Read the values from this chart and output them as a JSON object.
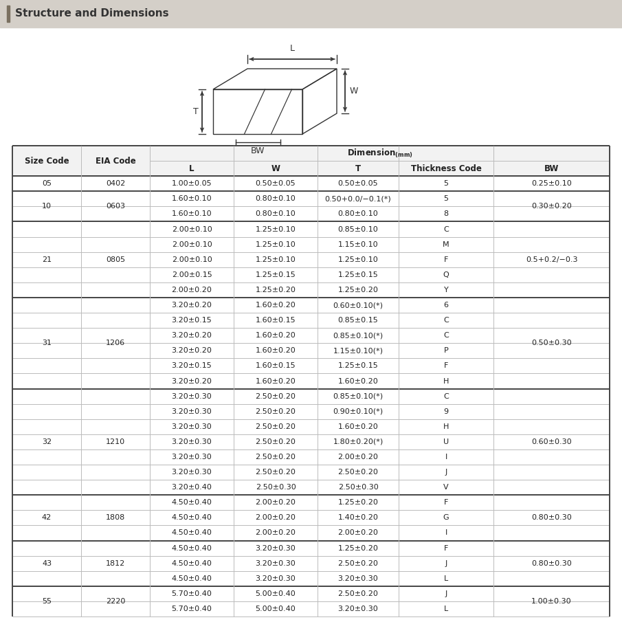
{
  "title": "Structure and Dimensions",
  "title_bar_color": "#d4cfc8",
  "title_bar_accent": "#7a7060",
  "header1": "Size Code",
  "header2": "EIA Code",
  "dim_header": "Dimension(mm)",
  "col_headers": [
    "L",
    "W",
    "T",
    "Thickness Code",
    "BW"
  ],
  "rows": [
    {
      "size": "05",
      "eia": "0402",
      "L": "1.00±0.05",
      "W": "0.50±0.05",
      "T": "0.50±0.05",
      "TC": "5",
      "BW": "0.25±0.10",
      "size_span": 1,
      "eia_span": 1,
      "bw_span": 1
    },
    {
      "size": "10",
      "eia": "0603",
      "L": "1.60±0.10",
      "W": "0.80±0.10",
      "T": "0.50+0.0/−0.1(*)",
      "TC": "5",
      "BW": "0.30±0.20",
      "size_span": 2,
      "eia_span": 2,
      "bw_span": 2
    },
    {
      "size": "",
      "eia": "",
      "L": "1.60±0.10",
      "W": "0.80±0.10",
      "T": "0.80±0.10",
      "TC": "8",
      "BW": ""
    },
    {
      "size": "21",
      "eia": "0805",
      "L": "2.00±0.10",
      "W": "1.25±0.10",
      "T": "0.85±0.10",
      "TC": "C",
      "BW": "0.5+0.2/−0.3",
      "size_span": 5,
      "eia_span": 5,
      "bw_span": 5
    },
    {
      "size": "",
      "eia": "",
      "L": "2.00±0.10",
      "W": "1.25±0.10",
      "T": "1.15±0.10",
      "TC": "M",
      "BW": ""
    },
    {
      "size": "",
      "eia": "",
      "L": "2.00±0.10",
      "W": "1.25±0.10",
      "T": "1.25±0.10",
      "TC": "F",
      "BW": ""
    },
    {
      "size": "",
      "eia": "",
      "L": "2.00±0.15",
      "W": "1.25±0.15",
      "T": "1.25±0.15",
      "TC": "Q",
      "BW": ""
    },
    {
      "size": "",
      "eia": "",
      "L": "2.00±0.20",
      "W": "1.25±0.20",
      "T": "1.25±0.20",
      "TC": "Y",
      "BW": ""
    },
    {
      "size": "31",
      "eia": "1206",
      "L": "3.20±0.20",
      "W": "1.60±0.20",
      "T": "0.60±0.10(*)",
      "TC": "6",
      "BW": "0.50±0.30",
      "size_span": 6,
      "eia_span": 6,
      "bw_span": 6
    },
    {
      "size": "",
      "eia": "",
      "L": "3.20±0.15",
      "W": "1.60±0.15",
      "T": "0.85±0.15",
      "TC": "C",
      "BW": ""
    },
    {
      "size": "",
      "eia": "",
      "L": "3.20±0.20",
      "W": "1.60±0.20",
      "T": "0.85±0.10(*)",
      "TC": "C",
      "BW": ""
    },
    {
      "size": "",
      "eia": "",
      "L": "3.20±0.20",
      "W": "1.60±0.20",
      "T": "1.15±0.10(*)",
      "TC": "P",
      "BW": ""
    },
    {
      "size": "",
      "eia": "",
      "L": "3.20±0.15",
      "W": "1.60±0.15",
      "T": "1.25±0.15",
      "TC": "F",
      "BW": ""
    },
    {
      "size": "",
      "eia": "",
      "L": "3.20±0.20",
      "W": "1.60±0.20",
      "T": "1.60±0.20",
      "TC": "H",
      "BW": ""
    },
    {
      "size": "32",
      "eia": "1210",
      "L": "3.20±0.30",
      "W": "2.50±0.20",
      "T": "0.85±0.10(*)",
      "TC": "C",
      "BW": "0.60±0.30",
      "size_span": 7,
      "eia_span": 7,
      "bw_span": 7
    },
    {
      "size": "",
      "eia": "",
      "L": "3.20±0.30",
      "W": "2.50±0.20",
      "T": "0.90±0.10(*)",
      "TC": "9",
      "BW": ""
    },
    {
      "size": "",
      "eia": "",
      "L": "3.20±0.30",
      "W": "2.50±0.20",
      "T": "1.60±0.20",
      "TC": "H",
      "BW": ""
    },
    {
      "size": "",
      "eia": "",
      "L": "3.20±0.30",
      "W": "2.50±0.20",
      "T": "1.80±0.20(*)",
      "TC": "U",
      "BW": ""
    },
    {
      "size": "",
      "eia": "",
      "L": "3.20±0.30",
      "W": "2.50±0.20",
      "T": "2.00±0.20",
      "TC": "I",
      "BW": ""
    },
    {
      "size": "",
      "eia": "",
      "L": "3.20±0.30",
      "W": "2.50±0.20",
      "T": "2.50±0.20",
      "TC": "J",
      "BW": ""
    },
    {
      "size": "",
      "eia": "",
      "L": "3.20±0.40",
      "W": "2.50±0.30",
      "T": "2.50±0.30",
      "TC": "V",
      "BW": ""
    },
    {
      "size": "42",
      "eia": "1808",
      "L": "4.50±0.40",
      "W": "2.00±0.20",
      "T": "1.25±0.20",
      "TC": "F",
      "BW": "0.80±0.30",
      "size_span": 3,
      "eia_span": 3,
      "bw_span": 3
    },
    {
      "size": "",
      "eia": "",
      "L": "4.50±0.40",
      "W": "2.00±0.20",
      "T": "1.40±0.20",
      "TC": "G",
      "BW": ""
    },
    {
      "size": "",
      "eia": "",
      "L": "4.50±0.40",
      "W": "2.00±0.20",
      "T": "2.00±0.20",
      "TC": "I",
      "BW": ""
    },
    {
      "size": "43",
      "eia": "1812",
      "L": "4.50±0.40",
      "W": "3.20±0.30",
      "T": "1.25±0.20",
      "TC": "F",
      "BW": "0.80±0.30",
      "size_span": 3,
      "eia_span": 3,
      "bw_span": 3
    },
    {
      "size": "",
      "eia": "",
      "L": "4.50±0.40",
      "W": "3.20±0.30",
      "T": "2.50±0.20",
      "TC": "J",
      "BW": ""
    },
    {
      "size": "",
      "eia": "",
      "L": "4.50±0.40",
      "W": "3.20±0.30",
      "T": "3.20±0.30",
      "TC": "L",
      "BW": ""
    },
    {
      "size": "55",
      "eia": "2220",
      "L": "5.70±0.40",
      "W": "5.00±0.40",
      "T": "2.50±0.20",
      "TC": "J",
      "BW": "1.00±0.30",
      "size_span": 2,
      "eia_span": 2,
      "bw_span": 2
    },
    {
      "size": "",
      "eia": "",
      "L": "5.70±0.40",
      "W": "5.00±0.40",
      "T": "3.20±0.30",
      "TC": "L",
      "BW": ""
    }
  ],
  "group_starts": [
    0,
    1,
    3,
    8,
    14,
    21,
    24,
    27
  ],
  "bg_color": "#ffffff",
  "header_bg": "#f2f2f2",
  "line_color": "#bbbbbb",
  "thick_line_color": "#444444",
  "text_color": "#222222",
  "title_fontsize": 11,
  "header_fontsize": 8.5,
  "data_fontsize": 8.0
}
